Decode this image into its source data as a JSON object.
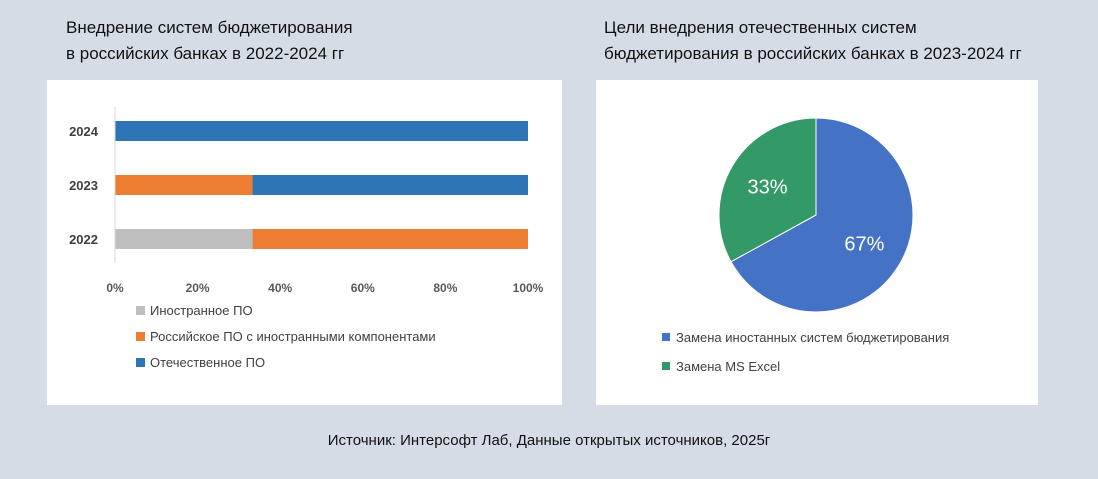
{
  "left_title_line1": "Внедрение систем бюджетирования",
  "left_title_line2": "в российских банках в 2022-2024 гг",
  "right_title_line1": "Цели внедрения отечественных систем",
  "right_title_line2": "бюджетирования в российских банках в 2023-2024 гг",
  "source": "Источник: Интерсофт Лаб,  Данные открытых источников, 2025г",
  "chart_data": [
    {
      "type": "bar",
      "orientation": "horizontal",
      "stacked": "100%",
      "categories": [
        "2024",
        "2023",
        "2022"
      ],
      "series": [
        {
          "name": "Иностранное ПО",
          "color": "#bfbfbf",
          "values": [
            0,
            0,
            33.3
          ]
        },
        {
          "name": "Российское ПО с иностранными компонентами",
          "color": "#ed7d31",
          "values": [
            0,
            33.3,
            66.7
          ]
        },
        {
          "name": "Отечественное ПО",
          "color": "#2e75b6",
          "values": [
            100,
            66.7,
            0
          ]
        }
      ],
      "x_ticks": [
        "0%",
        "20%",
        "40%",
        "60%",
        "80%",
        "100%"
      ],
      "xlim": [
        0,
        100
      ],
      "legend_position": "bottom",
      "grid": false
    },
    {
      "type": "pie",
      "slices": [
        {
          "label": "Замена иностанных систем бюджетирования",
          "value": 67,
          "data_label": "67%",
          "color": "#4472c4"
        },
        {
          "label": "Замена MS Excel",
          "value": 33,
          "data_label": "33%",
          "color": "#339966"
        }
      ],
      "legend_position": "bottom"
    }
  ]
}
